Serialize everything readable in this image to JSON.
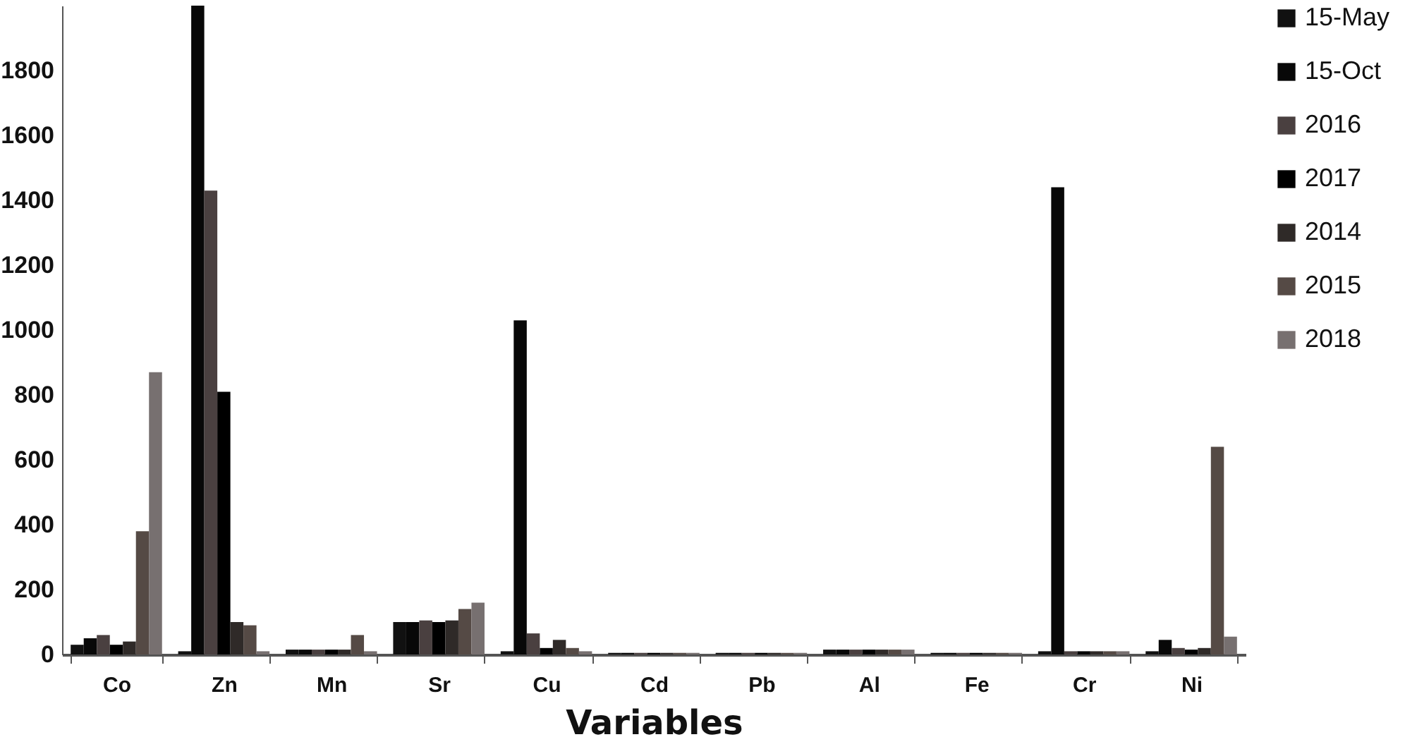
{
  "chart_data": {
    "type": "bar",
    "xlabel": "Variables",
    "categories": [
      "Co",
      "Zn",
      "Mn",
      "Sr",
      "Cu",
      "Cd",
      "Pb",
      "Al",
      "Fe",
      "Cr",
      "Ni"
    ],
    "ylim": [
      0,
      2000
    ],
    "yticks": [
      0,
      200,
      400,
      600,
      800,
      1000,
      1200,
      1400,
      1600,
      1800
    ],
    "grid": false,
    "legend": "right",
    "series": [
      {
        "name": "15-May",
        "color": "#111111",
        "values": [
          30,
          10,
          15,
          100,
          10,
          5,
          5,
          15,
          5,
          10,
          10
        ]
      },
      {
        "name": "15-Oct",
        "color": "#080808",
        "values": [
          50,
          2000,
          15,
          100,
          1030,
          5,
          5,
          15,
          5,
          1440,
          45
        ]
      },
      {
        "name": "2016",
        "color": "#4a4040",
        "values": [
          60,
          1430,
          15,
          105,
          65,
          5,
          5,
          15,
          5,
          10,
          20
        ]
      },
      {
        "name": "2017",
        "color": "#000000",
        "values": [
          30,
          810,
          15,
          100,
          20,
          5,
          5,
          15,
          5,
          10,
          15
        ]
      },
      {
        "name": "2014",
        "color": "#2f2a28",
        "values": [
          40,
          100,
          15,
          105,
          45,
          5,
          5,
          15,
          5,
          10,
          20
        ]
      },
      {
        "name": "2015",
        "color": "#554a45",
        "values": [
          380,
          90,
          60,
          140,
          20,
          5,
          5,
          15,
          5,
          10,
          640
        ]
      },
      {
        "name": "2018",
        "color": "#777070",
        "values": [
          870,
          10,
          10,
          160,
          10,
          5,
          5,
          15,
          5,
          10,
          55
        ]
      }
    ]
  }
}
